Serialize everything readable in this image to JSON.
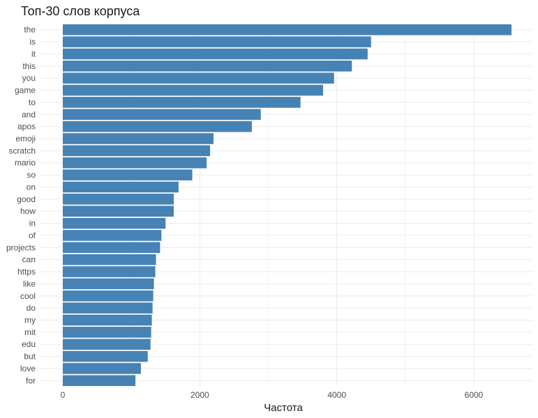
{
  "chart_data": {
    "type": "bar",
    "orientation": "horizontal",
    "title": "Топ-30 слов корпуса",
    "xlabel": "Частота",
    "ylabel": "",
    "xlim": [
      0,
      6800
    ],
    "x_ticks": [
      0,
      2000,
      4000,
      6000
    ],
    "grid": true,
    "bar_color": "#4682b4",
    "categories": [
      "the",
      "is",
      "it",
      "this",
      "you",
      "game",
      "to",
      "and",
      "apos",
      "emoji",
      "scratch",
      "mario",
      "so",
      "on",
      "good",
      "how",
      "in",
      "of",
      "projects",
      "can",
      "https",
      "like",
      "cool",
      "do",
      "my",
      "mit",
      "edu",
      "but",
      "love",
      "for"
    ],
    "values": [
      6550,
      4500,
      4450,
      4220,
      3960,
      3800,
      3470,
      2890,
      2760,
      2200,
      2150,
      2100,
      1890,
      1690,
      1620,
      1620,
      1500,
      1440,
      1420,
      1360,
      1350,
      1330,
      1320,
      1310,
      1300,
      1290,
      1280,
      1240,
      1140,
      1060
    ]
  }
}
